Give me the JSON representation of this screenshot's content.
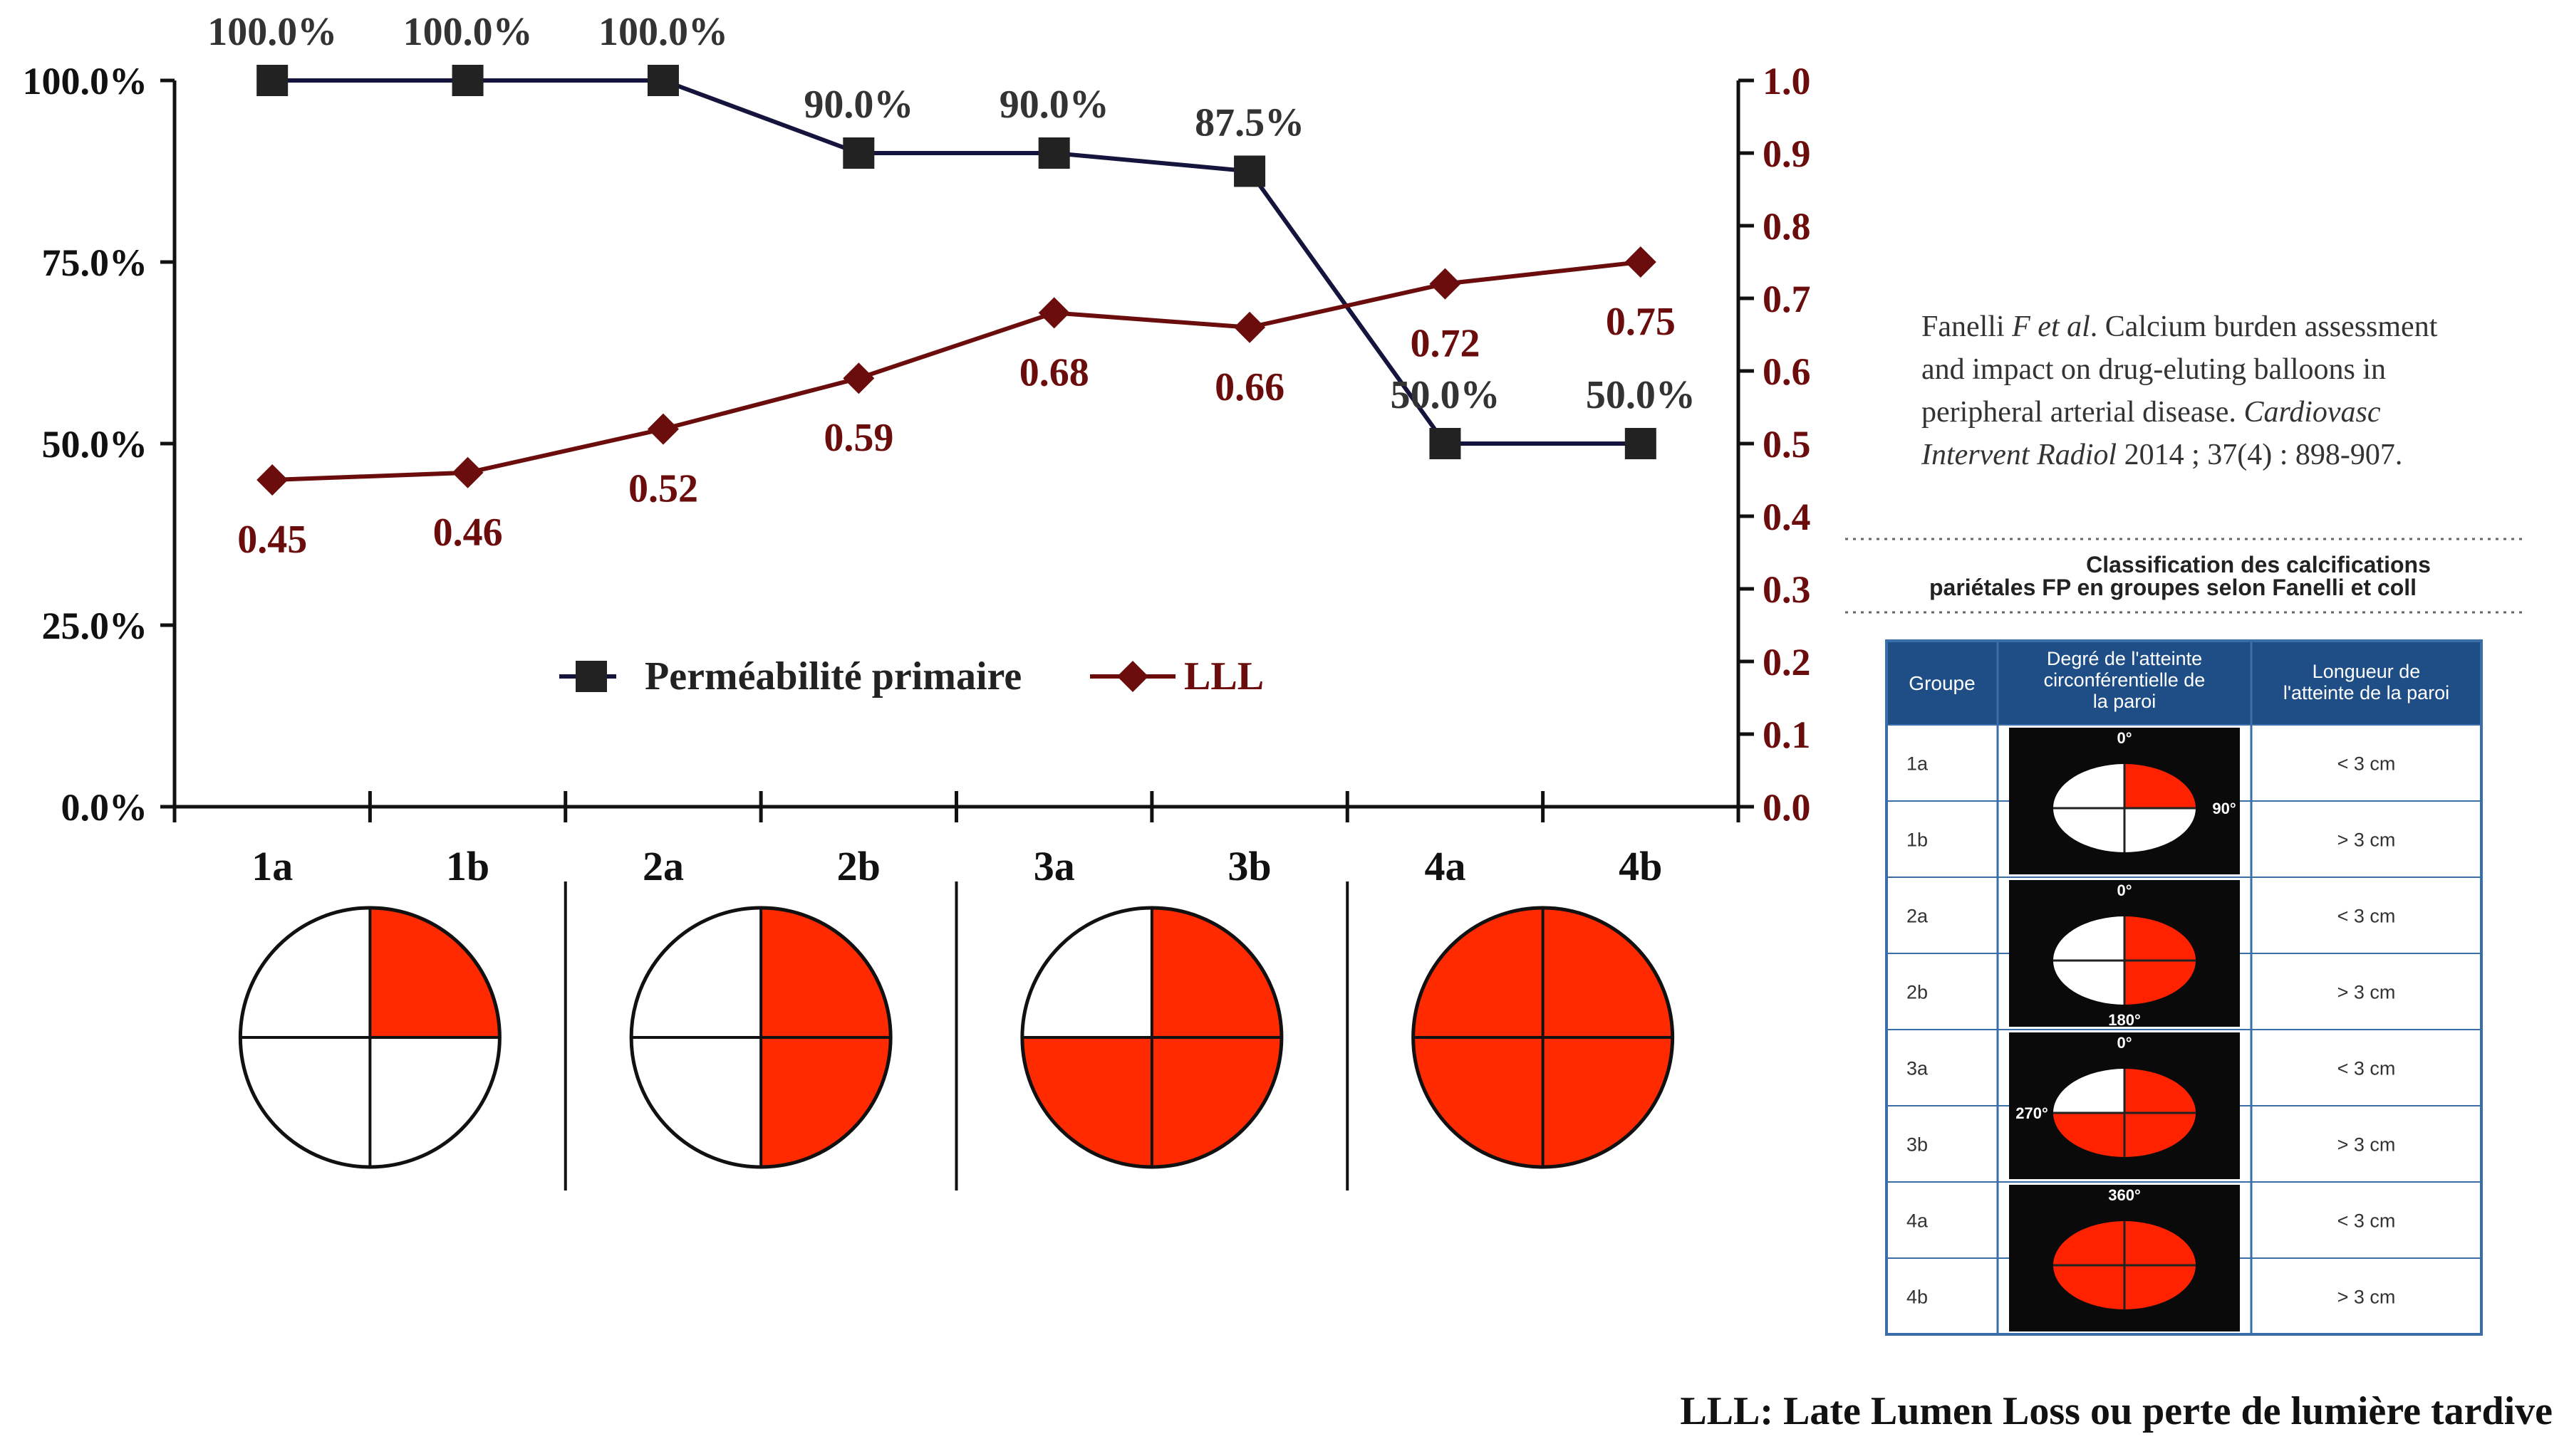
{
  "chart_data": {
    "type": "line",
    "categories": [
      "1a",
      "1b",
      "2a",
      "2b",
      "3a",
      "3b",
      "4a",
      "4b"
    ],
    "series": [
      {
        "name": "Perméabilité primaire",
        "axis": "left",
        "values": [
          100.0,
          100.0,
          100.0,
          90.0,
          90.0,
          87.5,
          50.0,
          50.0
        ],
        "labels": [
          "100.0%",
          "100.0%",
          "100.0%",
          "90.0%",
          "90.0%",
          "87.5%",
          "50.0%",
          "50.0%"
        ],
        "color": "#14143c",
        "marker": "square"
      },
      {
        "name": "LLL",
        "axis": "right",
        "values": [
          0.45,
          0.46,
          0.52,
          0.59,
          0.68,
          0.66,
          0.72,
          0.75
        ],
        "labels": [
          "0.45",
          "0.46",
          "0.52",
          "0.59",
          "0.68",
          "0.66",
          "0.72",
          "0.75"
        ],
        "color": "#6b0d0d",
        "marker": "diamond"
      }
    ],
    "y_left": {
      "range": [
        0,
        100
      ],
      "ticks": [
        "0.0%",
        "25.0%",
        "50.0%",
        "75.0%",
        "100.0%"
      ]
    },
    "y_right": {
      "range": [
        0,
        1.0
      ],
      "ticks": [
        "0.0",
        "0.1",
        "0.2",
        "0.3",
        "0.4",
        "0.5",
        "0.6",
        "0.7",
        "0.8",
        "0.9",
        "1.0"
      ]
    },
    "grid": false,
    "legend": "center-bottom inside plot",
    "group_quarters_filled": [
      1,
      1,
      2,
      2,
      3,
      3,
      4,
      4
    ]
  },
  "citation": {
    "line1_author": "Fanelli ",
    "line1_etal": "F et al",
    "line1_rest": ". Calcium burden assessment",
    "line2": "and impact on drug-eluting balloons in",
    "line3_text": "peripheral arterial disease. ",
    "line3_journal": "Cardiovasc",
    "line4_journal": "Intervent Radiol",
    "line4_rest": " 2014 ; 37(4) : 898-907."
  },
  "classification": {
    "title_line1": "Classification des calcifications",
    "title_line2": "pariétales FP en groupes selon Fanelli et coll",
    "headers": [
      "Groupe",
      "Degré de l'atteinte circonférentielle de la paroi",
      "Longueur de l'atteinte de la paroi"
    ],
    "header_col2_lines": [
      "Degré de l'atteinte",
      "circonférentielle de",
      "la paroi"
    ],
    "header_col3_lines": [
      "Longueur de",
      "l'atteinte de la paroi"
    ],
    "rows": [
      {
        "group": "1a",
        "length": "< 3 cm"
      },
      {
        "group": "1b",
        "length": "> 3 cm"
      },
      {
        "group": "2a",
        "length": "< 3 cm"
      },
      {
        "group": "2b",
        "length": "> 3 cm"
      },
      {
        "group": "3a",
        "length": "< 3 cm"
      },
      {
        "group": "3b",
        "length": "> 3 cm"
      },
      {
        "group": "4a",
        "length": "< 3 cm"
      },
      {
        "group": "4b",
        "length": "> 3 cm"
      }
    ],
    "degree_labels": [
      "0°",
      "90°",
      "0°",
      "180°",
      "0°",
      "270°",
      "360°"
    ],
    "colors": {
      "header_bg": "#1f4e87",
      "header_text": "#ffffff",
      "border": "#3a6ea8",
      "red": "#ff2200"
    }
  },
  "footnote": "LLL: Late Lumen Loss ou perte de lumière tardive"
}
